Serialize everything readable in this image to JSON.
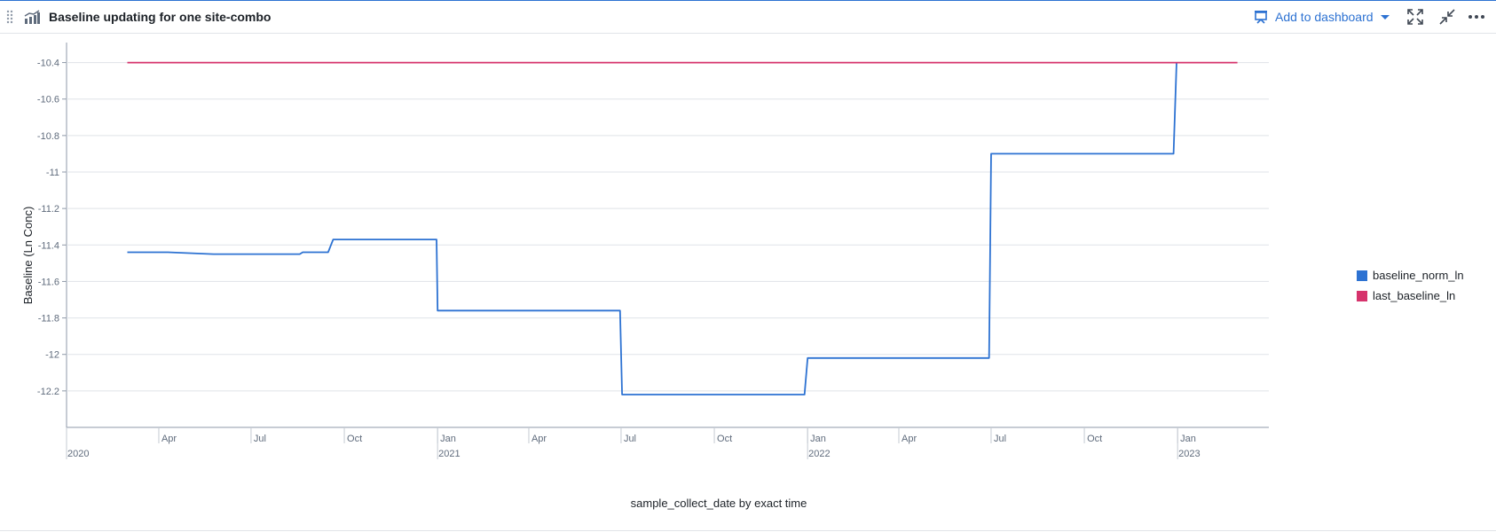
{
  "header": {
    "title": "Baseline updating for one site-combo",
    "add_to_dashboard_label": "Add to dashboard",
    "icons": [
      "drag-handle-icon",
      "line-chart-icon",
      "presentation-icon",
      "caret-down-icon",
      "fullscreen-icon",
      "minimize-icon",
      "more-icon"
    ],
    "accent_color": "#2d72d2"
  },
  "chart_data": {
    "type": "line",
    "xlabel": "sample_collect_date by exact time",
    "ylabel": "Baseline (Ln Conc)",
    "ylim": [
      -12.4,
      -10.3
    ],
    "xlim": [
      "2020-01-01",
      "2023-04-01"
    ],
    "y_ticks": [
      -10.4,
      -10.6,
      -10.8,
      -11,
      -11.2,
      -11.4,
      -11.6,
      -11.8,
      -12,
      -12.2
    ],
    "x_month_ticks": [
      {
        "date": "2020-04-01",
        "label": "Apr"
      },
      {
        "date": "2020-07-01",
        "label": "Jul"
      },
      {
        "date": "2020-10-01",
        "label": "Oct"
      },
      {
        "date": "2021-01-01",
        "label": "Jan"
      },
      {
        "date": "2021-04-01",
        "label": "Apr"
      },
      {
        "date": "2021-07-01",
        "label": "Jul"
      },
      {
        "date": "2021-10-01",
        "label": "Oct"
      },
      {
        "date": "2022-01-01",
        "label": "Jan"
      },
      {
        "date": "2022-04-01",
        "label": "Apr"
      },
      {
        "date": "2022-07-01",
        "label": "Jul"
      },
      {
        "date": "2022-10-01",
        "label": "Oct"
      },
      {
        "date": "2023-01-01",
        "label": "Jan"
      }
    ],
    "x_year_ticks": [
      {
        "date": "2020-01-01",
        "label": "2020"
      },
      {
        "date": "2021-01-01",
        "label": "2021"
      },
      {
        "date": "2022-01-01",
        "label": "2022"
      },
      {
        "date": "2023-01-01",
        "label": "2023"
      }
    ],
    "grid": true,
    "legend_position": "right",
    "series": [
      {
        "name": "baseline_norm_ln",
        "color": "#2d72d2",
        "points": [
          [
            "2020-03-01",
            -11.44
          ],
          [
            "2020-04-10",
            -11.44
          ],
          [
            "2020-05-25",
            -11.45
          ],
          [
            "2020-08-18",
            -11.45
          ],
          [
            "2020-08-21",
            -11.44
          ],
          [
            "2020-09-15",
            -11.44
          ],
          [
            "2020-09-20",
            -11.37
          ],
          [
            "2020-12-31",
            -11.37
          ],
          [
            "2021-01-01",
            -11.76
          ],
          [
            "2021-06-30",
            -11.76
          ],
          [
            "2021-07-02",
            -12.22
          ],
          [
            "2021-12-29",
            -12.22
          ],
          [
            "2022-01-01",
            -12.02
          ],
          [
            "2022-06-29",
            -12.02
          ],
          [
            "2022-07-01",
            -10.9
          ],
          [
            "2022-12-28",
            -10.9
          ],
          [
            "2022-12-31",
            -10.4
          ]
        ]
      },
      {
        "name": "last_baseline_ln",
        "color": "#d6336c",
        "points": [
          [
            "2020-03-01",
            -10.4
          ],
          [
            "2023-03-01",
            -10.4
          ]
        ]
      }
    ]
  }
}
